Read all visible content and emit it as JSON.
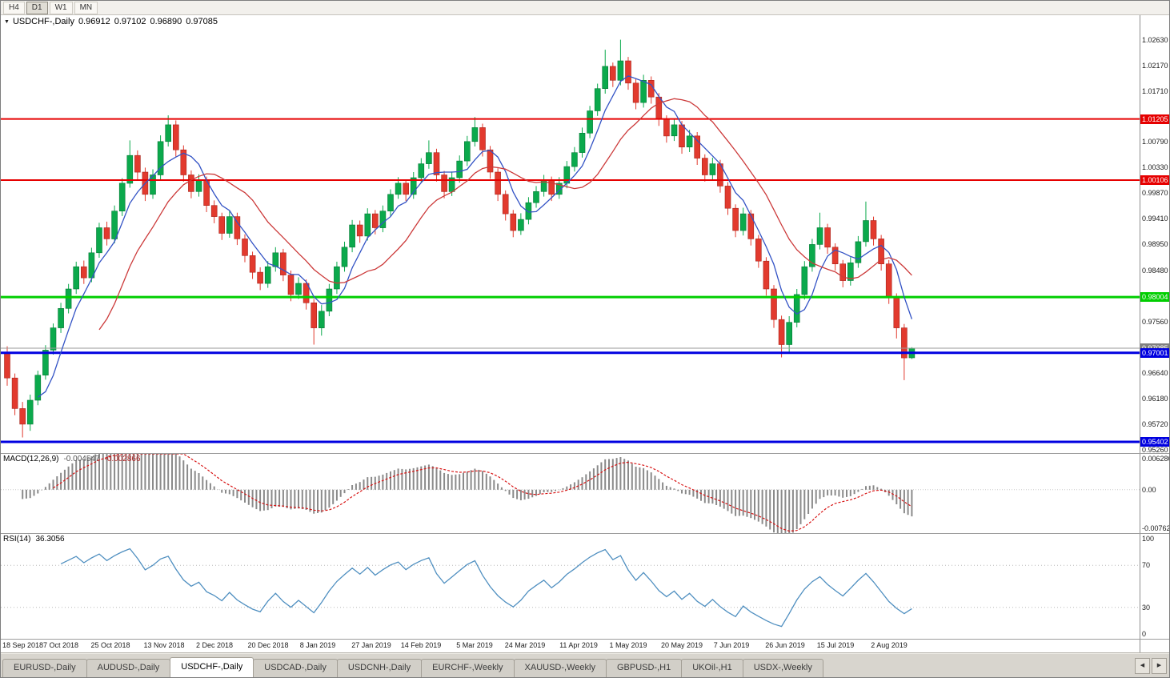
{
  "toolbar": {
    "buttons": [
      "H4",
      "D1",
      "W1",
      "MN"
    ],
    "active": "D1"
  },
  "chart_title": {
    "symbol": "USDCHF-,Daily",
    "o": "0.96912",
    "h": "0.97102",
    "l": "0.96890",
    "c": "0.97085"
  },
  "colors": {
    "up": "#0ba94c",
    "up_border": "#067a36",
    "down": "#e23a2e",
    "down_border": "#a8251c",
    "ma_fast": "#3353c5",
    "ma_slow": "#cc3a3a",
    "price_line": "#9a9a9a",
    "price_badge": "#808080",
    "macd_hist": "#8a8a8a",
    "macd_signal": "#d81616",
    "rsi_line": "#4f8fc0",
    "level_dotted": "#b8b8b8"
  },
  "chart_data": {
    "type": "candlestick",
    "symbol": "USDCHF-",
    "timeframe": "Daily",
    "y_range": [
      0.952,
      1.0307
    ],
    "y_ticks": [
      "1.02630",
      "1.02170",
      "1.01710",
      "1.00790",
      "1.00330",
      "0.99870",
      "0.99410",
      "0.98950",
      "0.98480",
      "0.97560",
      "0.96640",
      "0.96180",
      "0.95720",
      "0.95260"
    ],
    "hlines": [
      {
        "label": "1.01205",
        "value": 1.01205,
        "color": "#e60000",
        "width": 2
      },
      {
        "label": "1.00106",
        "value": 1.00106,
        "color": "#e60000",
        "width": 2
      },
      {
        "label": "0.98004",
        "value": 0.98004,
        "color": "#00ce00",
        "width": 3
      },
      {
        "label": "0.97001",
        "value": 0.97001,
        "color": "#0000e0",
        "width": 3
      },
      {
        "label": "0.95402",
        "value": 0.95402,
        "color": "#0000e0",
        "width": 3
      }
    ],
    "current_price": {
      "label": "0.97085",
      "value": 0.97085
    },
    "x_labels": [
      {
        "label": "18 Sep 2018",
        "pos": 0
      },
      {
        "label": "7 Oct 2018",
        "pos": 7
      },
      {
        "label": "25 Oct 2018",
        "pos": 13.5
      },
      {
        "label": "13 Nov 2018",
        "pos": 20.5
      },
      {
        "label": "2 Dec 2018",
        "pos": 27
      },
      {
        "label": "20 Dec 2018",
        "pos": 34
      },
      {
        "label": "8 Jan 2019",
        "pos": 40.5
      },
      {
        "label": "27 Jan 2019",
        "pos": 47.5
      },
      {
        "label": "14 Feb 2019",
        "pos": 54
      },
      {
        "label": "5 Mar 2019",
        "pos": 61
      },
      {
        "label": "24 Mar 2019",
        "pos": 67.5
      },
      {
        "label": "11 Apr 2019",
        "pos": 74.5
      },
      {
        "label": "1 May 2019",
        "pos": 81
      },
      {
        "label": "20 May 2019",
        "pos": 88
      },
      {
        "label": "7 Jun 2019",
        "pos": 94.5
      },
      {
        "label": "26 Jun 2019",
        "pos": 101.5
      },
      {
        "label": "15 Jul 2019",
        "pos": 108
      },
      {
        "label": "2 Aug 2019",
        "pos": 115
      }
    ],
    "overlays": {
      "ma_fast_period": 5,
      "ma_slow_period": 13
    },
    "ohlc": [
      [
        0.97,
        0.9712,
        0.9641,
        0.9655
      ],
      [
        0.9655,
        0.9663,
        0.9588,
        0.96
      ],
      [
        0.96,
        0.9612,
        0.9548,
        0.9572
      ],
      [
        0.9572,
        0.9625,
        0.956,
        0.9615
      ],
      [
        0.9615,
        0.9668,
        0.9606,
        0.966
      ],
      [
        0.966,
        0.9714,
        0.9652,
        0.9705
      ],
      [
        0.9705,
        0.9753,
        0.9697,
        0.9745
      ],
      [
        0.9745,
        0.979,
        0.9736,
        0.978
      ],
      [
        0.978,
        0.9824,
        0.9771,
        0.9815
      ],
      [
        0.9815,
        0.9864,
        0.9806,
        0.9855
      ],
      [
        0.9855,
        0.9866,
        0.9824,
        0.9835
      ],
      [
        0.9835,
        0.9889,
        0.9827,
        0.988
      ],
      [
        0.988,
        0.9934,
        0.9871,
        0.9925
      ],
      [
        0.9925,
        0.9936,
        0.9893,
        0.9905
      ],
      [
        0.9905,
        0.9965,
        0.9897,
        0.9955
      ],
      [
        0.9955,
        1.0014,
        0.9946,
        1.0005
      ],
      [
        1.0005,
        1.0082,
        0.9997,
        1.0055
      ],
      [
        1.0055,
        1.0064,
        1.0012,
        1.0025
      ],
      [
        1.0025,
        1.0033,
        0.9973,
        0.9985
      ],
      [
        0.9985,
        1.003,
        0.9977,
        1.002
      ],
      [
        1.002,
        1.0091,
        1.0012,
        1.008
      ],
      [
        1.008,
        1.0127,
        1.0071,
        1.011
      ],
      [
        1.011,
        1.0118,
        1.0053,
        1.0065
      ],
      [
        1.0065,
        1.0073,
        1.0008,
        1.002
      ],
      [
        1.002,
        1.0028,
        0.9978,
        0.999
      ],
      [
        0.999,
        1.0021,
        0.9981,
        1.001
      ],
      [
        1.001,
        1.0017,
        0.9953,
        0.9965
      ],
      [
        0.9965,
        0.9974,
        0.9933,
        0.9945
      ],
      [
        0.9945,
        0.9952,
        0.9903,
        0.9915
      ],
      [
        0.9915,
        0.9955,
        0.9907,
        0.9945
      ],
      [
        0.9945,
        0.9952,
        0.9894,
        0.9905
      ],
      [
        0.9905,
        0.9913,
        0.9863,
        0.9875
      ],
      [
        0.9875,
        0.9882,
        0.9833,
        0.9845
      ],
      [
        0.9845,
        0.9854,
        0.9813,
        0.9825
      ],
      [
        0.9825,
        0.9865,
        0.9817,
        0.9855
      ],
      [
        0.9855,
        0.989,
        0.9846,
        0.988
      ],
      [
        0.988,
        0.9887,
        0.9829,
        0.984
      ],
      [
        0.984,
        0.9848,
        0.9793,
        0.9805
      ],
      [
        0.9805,
        0.9836,
        0.9797,
        0.9825
      ],
      [
        0.9825,
        0.9832,
        0.9778,
        0.979
      ],
      [
        0.979,
        0.9797,
        0.9715,
        0.9745
      ],
      [
        0.9745,
        0.9786,
        0.9731,
        0.9775
      ],
      [
        0.9775,
        0.9824,
        0.9766,
        0.9815
      ],
      [
        0.9815,
        0.9864,
        0.9806,
        0.9855
      ],
      [
        0.9855,
        0.99,
        0.9846,
        0.989
      ],
      [
        0.989,
        0.9939,
        0.9881,
        0.993
      ],
      [
        0.993,
        0.9938,
        0.9898,
        0.991
      ],
      [
        0.991,
        0.996,
        0.9902,
        0.995
      ],
      [
        0.995,
        0.9957,
        0.9913,
        0.9925
      ],
      [
        0.9925,
        0.9965,
        0.9917,
        0.9955
      ],
      [
        0.9955,
        0.9994,
        0.9946,
        0.9985
      ],
      [
        0.9985,
        1.0016,
        0.9977,
        1.0005
      ],
      [
        1.0005,
        1.0012,
        0.9973,
        0.9985
      ],
      [
        0.9985,
        1.0025,
        0.9977,
        1.0015
      ],
      [
        1.0015,
        1.005,
        1.0006,
        1.004
      ],
      [
        1.004,
        1.0082,
        1.0031,
        1.006
      ],
      [
        1.006,
        1.0067,
        1.0008,
        1.002
      ],
      [
        1.002,
        1.0027,
        0.9978,
        0.999
      ],
      [
        0.999,
        1.0026,
        0.9982,
        1.0015
      ],
      [
        1.0015,
        1.0055,
        1.0006,
        1.0045
      ],
      [
        1.0045,
        1.009,
        1.0036,
        1.008
      ],
      [
        1.008,
        1.0124,
        1.0071,
        1.0105
      ],
      [
        1.0105,
        1.0112,
        1.0053,
        1.0065
      ],
      [
        1.0065,
        1.0072,
        1.0013,
        1.0025
      ],
      [
        1.0025,
        1.0032,
        0.9973,
        0.9985
      ],
      [
        0.9985,
        0.9992,
        0.9938,
        0.995
      ],
      [
        0.995,
        0.9957,
        0.9908,
        0.992
      ],
      [
        0.992,
        0.9951,
        0.9912,
        0.994
      ],
      [
        0.994,
        0.998,
        0.9931,
        0.997
      ],
      [
        0.997,
        1.0,
        0.9961,
        0.999
      ],
      [
        0.999,
        1.002,
        0.9981,
        1.001
      ],
      [
        1.001,
        1.0017,
        0.9973,
        0.9985
      ],
      [
        0.9985,
        1.0016,
        0.9977,
        1.0005
      ],
      [
        1.0005,
        1.0045,
        0.9996,
        1.0035
      ],
      [
        1.0035,
        1.007,
        1.0026,
        1.006
      ],
      [
        1.006,
        1.0105,
        1.0051,
        1.0095
      ],
      [
        1.0095,
        1.0144,
        1.0086,
        1.0135
      ],
      [
        1.0135,
        1.0184,
        1.0126,
        1.0175
      ],
      [
        1.0175,
        1.0245,
        1.0166,
        1.0215
      ],
      [
        1.0215,
        1.0222,
        1.0178,
        1.019
      ],
      [
        1.019,
        1.0263,
        1.0181,
        1.0225
      ],
      [
        1.0225,
        1.0232,
        1.0173,
        1.0185
      ],
      [
        1.0185,
        1.0192,
        1.0138,
        1.015
      ],
      [
        1.015,
        1.02,
        1.0141,
        1.019
      ],
      [
        1.019,
        1.0197,
        1.0148,
        1.016
      ],
      [
        1.016,
        1.0167,
        1.0108,
        1.012
      ],
      [
        1.012,
        1.0127,
        1.0078,
        1.009
      ],
      [
        1.009,
        1.0121,
        1.0081,
        1.011
      ],
      [
        1.011,
        1.0117,
        1.0058,
        1.007
      ],
      [
        1.007,
        1.0101,
        1.0061,
        1.009
      ],
      [
        1.009,
        1.0097,
        1.0038,
        1.005
      ],
      [
        1.005,
        1.0057,
        1.0008,
        1.002
      ],
      [
        1.002,
        1.0051,
        1.0011,
        1.004
      ],
      [
        1.004,
        1.0047,
        0.9988,
        1.0
      ],
      [
        1.0,
        1.0007,
        0.9948,
        0.996
      ],
      [
        0.996,
        0.9967,
        0.9908,
        0.992
      ],
      [
        0.992,
        0.9961,
        0.9911,
        0.995
      ],
      [
        0.995,
        0.9957,
        0.9893,
        0.9905
      ],
      [
        0.9905,
        0.9912,
        0.9853,
        0.9865
      ],
      [
        0.9865,
        0.9872,
        0.9803,
        0.9815
      ],
      [
        0.9815,
        0.9822,
        0.9745,
        0.976
      ],
      [
        0.976,
        0.9767,
        0.9692,
        0.9715
      ],
      [
        0.9715,
        0.9766,
        0.9701,
        0.9755
      ],
      [
        0.9755,
        0.9815,
        0.9746,
        0.9805
      ],
      [
        0.9805,
        0.9865,
        0.9796,
        0.9855
      ],
      [
        0.9855,
        0.9905,
        0.9846,
        0.9895
      ],
      [
        0.9895,
        0.9952,
        0.9886,
        0.9925
      ],
      [
        0.9925,
        0.9932,
        0.9878,
        0.989
      ],
      [
        0.989,
        0.9897,
        0.9848,
        0.986
      ],
      [
        0.986,
        0.9867,
        0.9818,
        0.983
      ],
      [
        0.983,
        0.9872,
        0.9821,
        0.9862
      ],
      [
        0.9862,
        0.991,
        0.9853,
        0.99
      ],
      [
        0.99,
        0.9972,
        0.9891,
        0.9938
      ],
      [
        0.9938,
        0.9945,
        0.9893,
        0.9905
      ],
      [
        0.9905,
        0.9912,
        0.9848,
        0.986
      ],
      [
        0.986,
        0.9867,
        0.9788,
        0.98
      ],
      [
        0.98,
        0.9807,
        0.9726,
        0.9745
      ],
      [
        0.9745,
        0.9752,
        0.9651,
        0.9691
      ],
      [
        0.96912,
        0.97102,
        0.9689,
        0.97085
      ]
    ],
    "indicators": {
      "macd": {
        "label": "MACD(12,26,9)",
        "value_main": "-0.004547",
        "value_signal": "-0.002866",
        "axis": [
          {
            "label": "0.006286",
            "value": 0.006286
          },
          {
            "label": "0.00",
            "value": 0
          },
          {
            "label": "-0.00762",
            "value": -0.00762
          }
        ]
      },
      "rsi": {
        "label": "RSI(14)",
        "value": "36.3056",
        "axis": [
          {
            "label": "100",
            "value": 100
          },
          {
            "label": "70",
            "value": 70
          },
          {
            "label": "30",
            "value": 30
          },
          {
            "label": "0",
            "value": 0
          }
        ],
        "levels": [
          70,
          30
        ]
      }
    }
  },
  "tabs": {
    "items": [
      "EURUSD-,Daily",
      "AUDUSD-,Daily",
      "USDCHF-,Daily",
      "USDCAD-,Daily",
      "USDCNH-,Daily",
      "EURCHF-,Weekly",
      "XAUUSD-,Weekly",
      "GBPUSD-,H1",
      "UKOil-,H1",
      "USDX-,Weekly"
    ],
    "active": "USDCHF-,Daily",
    "scroll_icons": {
      "left": "◀",
      "right": "▶"
    }
  }
}
